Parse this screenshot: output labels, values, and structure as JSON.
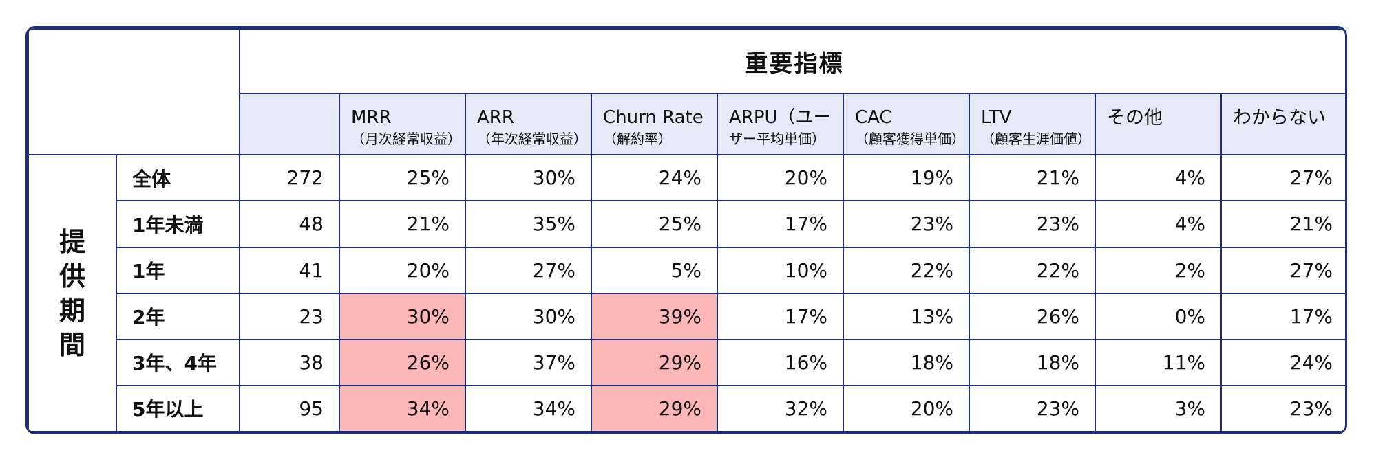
{
  "title": "重要指標",
  "side_label": [
    "提",
    "供",
    "期",
    "間"
  ],
  "columns": [
    {
      "l1": "MRR",
      "l2": "（月次経常収益）"
    },
    {
      "l1": "ARR",
      "l2": "（年次経常収益）"
    },
    {
      "l1": "Churn Rate",
      "l2": "（解約率）"
    },
    {
      "l1": "ARPU（ユー",
      "l2": "ザー平均単価）"
    },
    {
      "l1": "CAC",
      "l2": "（顧客獲得単価）"
    },
    {
      "l1": "LTV",
      "l2": "（顧客生涯価値）"
    },
    {
      "l1": "その他",
      "l2": ""
    },
    {
      "l1": "わからない",
      "l2": ""
    }
  ],
  "rows": [
    {
      "label": "全体",
      "n": "272",
      "values": [
        "25%",
        "30%",
        "24%",
        "20%",
        "19%",
        "21%",
        "4%",
        "27%"
      ],
      "highlight": [
        false,
        false,
        false,
        false,
        false,
        false,
        false,
        false
      ]
    },
    {
      "label": "1年未満",
      "n": "48",
      "values": [
        "21%",
        "35%",
        "25%",
        "17%",
        "23%",
        "23%",
        "4%",
        "21%"
      ],
      "highlight": [
        false,
        false,
        false,
        false,
        false,
        false,
        false,
        false
      ]
    },
    {
      "label": "1年",
      "n": "41",
      "values": [
        "20%",
        "27%",
        "5%",
        "10%",
        "22%",
        "22%",
        "2%",
        "27%"
      ],
      "highlight": [
        false,
        false,
        false,
        false,
        false,
        false,
        false,
        false
      ]
    },
    {
      "label": "2年",
      "n": "23",
      "values": [
        "30%",
        "30%",
        "39%",
        "17%",
        "13%",
        "26%",
        "0%",
        "17%"
      ],
      "highlight": [
        true,
        false,
        true,
        false,
        false,
        false,
        false,
        false
      ]
    },
    {
      "label": "3年、4年",
      "n": "38",
      "values": [
        "26%",
        "37%",
        "29%",
        "16%",
        "18%",
        "18%",
        "11%",
        "24%"
      ],
      "highlight": [
        true,
        false,
        true,
        false,
        false,
        false,
        false,
        false
      ]
    },
    {
      "label": "5年以上",
      "n": "95",
      "values": [
        "34%",
        "34%",
        "29%",
        "32%",
        "20%",
        "23%",
        "3%",
        "23%"
      ],
      "highlight": [
        true,
        false,
        true,
        false,
        false,
        false,
        false,
        false
      ]
    }
  ],
  "colors": {
    "border": "#1f2f80",
    "header_bg": "#e8e9f7",
    "highlight": "#fbb6b8"
  }
}
